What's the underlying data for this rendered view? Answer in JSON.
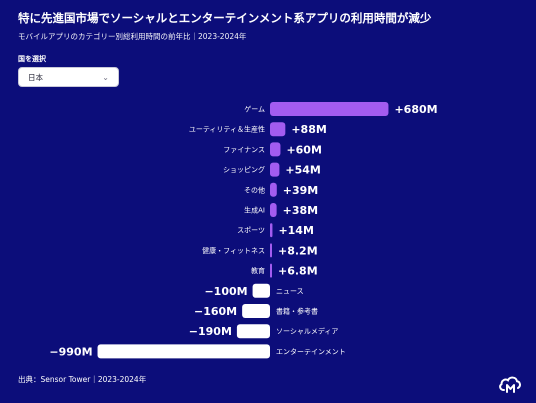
{
  "header": {
    "title": "特に先進国市場でソーシャルとエンターテインメント系アプリの利用時間が減少",
    "subtitle": "モバイルアプリのカテゴリー別総利用時間の前年比｜2023-2024年"
  },
  "filter": {
    "label": "国を選択",
    "selected": "日本",
    "chevron_icon": "chevron-down-icon"
  },
  "footer": {
    "source": "出典：Sensor Tower｜2023-2024年"
  },
  "colors": {
    "background": "#0c0d7a",
    "positive": "#a35cf0",
    "negative": "#ffffff"
  },
  "chart_data": {
    "type": "bar",
    "orientation": "horizontal",
    "categories": [
      "ゲーム",
      "ユーティリティ＆生産性",
      "ファイナンス",
      "ショッピング",
      "その他",
      "生成AI",
      "スポーツ",
      "健康・フィットネス",
      "教育",
      "ニュース",
      "書籍・参考書",
      "ソーシャルメディア",
      "エンターテインメント"
    ],
    "values": [
      680,
      88,
      60,
      54,
      39,
      38,
      14,
      8.2,
      6.8,
      -100,
      -160,
      -190,
      -990
    ],
    "value_labels": [
      "+680M",
      "+88M",
      "+60M",
      "+54M",
      "+39M",
      "+38M",
      "+14M",
      "+8.2M",
      "+6.8M",
      "−100M",
      "−160M",
      "−190M",
      "−990M"
    ],
    "unit": "M"
  }
}
